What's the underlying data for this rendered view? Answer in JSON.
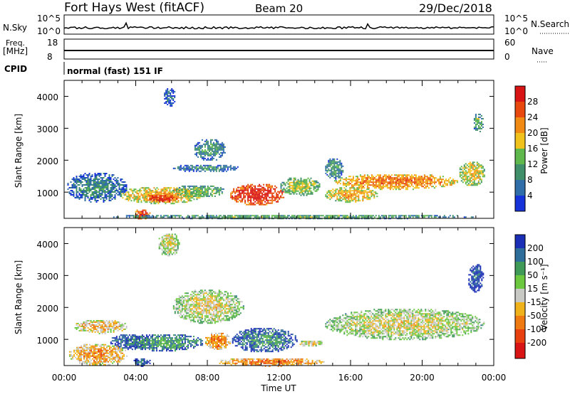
{
  "header": {
    "station": "Fort Hays West (fitACF)",
    "beam": "Beam 20",
    "date": "29/Dec/2018"
  },
  "mini_panels": {
    "nsky_label": "N.Sky",
    "nsky_ticks": [
      "10^5",
      "10^0"
    ],
    "nsearch_label": "N.Search",
    "nsearch_ticks": [
      "10^5",
      "10^0"
    ],
    "freq_label": "Freq.",
    "freq_unit": "[MHz]",
    "freq_ticks": [
      "18",
      "8"
    ],
    "nave_label": "Nave",
    "nave_ticks": [
      "60",
      "0"
    ],
    "cpid_label": "CPID",
    "cpid_text": "normal (fast) 151 IF"
  },
  "x_axis": {
    "label": "Time UT",
    "ticks": [
      "00:00",
      "04:00",
      "08:00",
      "12:00",
      "16:00",
      "20:00",
      "00:00"
    ]
  },
  "chart_data": [
    {
      "type": "heatmap",
      "panel": "power",
      "ylabel": "Slant Range [km]",
      "yticks": [
        "1000",
        "2000",
        "3000",
        "4000"
      ],
      "ylim": [
        180,
        4500
      ],
      "xlim_hours": [
        0,
        24
      ],
      "colorbar_label": "Power [dB]",
      "colorbar_ticks": [
        "4",
        "8",
        "12",
        "16",
        "20",
        "24",
        "28"
      ],
      "colors": [
        "#1533d8",
        "#2f6ea8",
        "#3f8f6a",
        "#5fb84c",
        "#f2c21c",
        "#f08a12",
        "#e8480e",
        "#d81414"
      ],
      "regions": [
        {
          "t": [
            0.1,
            3.5
          ],
          "r": [
            700,
            1650
          ],
          "level": 0.3
        },
        {
          "t": [
            3.0,
            7.8
          ],
          "r": [
            650,
            1200
          ],
          "level": 0.65
        },
        {
          "t": [
            4.5,
            6.3
          ],
          "r": [
            700,
            950
          ],
          "level": 0.95
        },
        {
          "t": [
            6.0,
            9.0
          ],
          "r": [
            850,
            1250
          ],
          "level": 0.45
        },
        {
          "t": [
            9.2,
            12.3
          ],
          "r": [
            600,
            1300
          ],
          "level": 0.95
        },
        {
          "t": [
            12.0,
            14.3
          ],
          "r": [
            900,
            1500
          ],
          "level": 0.5
        },
        {
          "t": [
            6.0,
            9.8
          ],
          "r": [
            1650,
            1900
          ],
          "level": 0.3
        },
        {
          "t": [
            7.2,
            9.0
          ],
          "r": [
            2000,
            2700
          ],
          "level": 0.35
        },
        {
          "t": [
            14.5,
            17.5
          ],
          "r": [
            700,
            1200
          ],
          "level": 0.65
        },
        {
          "t": [
            15.0,
            22.0
          ],
          "r": [
            1100,
            1600
          ],
          "level": 0.75
        },
        {
          "t": [
            22.0,
            23.5
          ],
          "r": [
            1200,
            2000
          ],
          "level": 0.6
        },
        {
          "t": [
            14.5,
            15.6
          ],
          "r": [
            1400,
            2100
          ],
          "level": 0.35
        },
        {
          "t": [
            22.8,
            23.4
          ],
          "r": [
            2900,
            3500
          ],
          "level": 0.4
        },
        {
          "t": [
            3.8,
            4.8
          ],
          "r": [
            170,
            500
          ],
          "level": 0.85
        },
        {
          "t": [
            2.5,
            23.0
          ],
          "r": [
            180,
            330
          ],
          "level": 0.4
        },
        {
          "t": [
            5.5,
            6.2
          ],
          "r": [
            3700,
            4300
          ],
          "level": 0.2
        }
      ]
    },
    {
      "type": "heatmap",
      "panel": "velocity",
      "ylabel": "Slant Range [km]",
      "yticks": [
        "1000",
        "2000",
        "3000",
        "4000"
      ],
      "ylim": [
        180,
        4500
      ],
      "xlim_hours": [
        0,
        24
      ],
      "colorbar_label": "Velocity [m s⁻¹]",
      "colorbar_ticks": [
        "200",
        "100",
        "50",
        "15",
        "-15",
        "-50",
        "-100",
        "-200"
      ],
      "colors": [
        "#1a2fb5",
        "#2e6e9a",
        "#3e9a56",
        "#6cc93f",
        "#c8c8c4",
        "#f0b21a",
        "#f07a12",
        "#e8400e",
        "#d81414"
      ],
      "regions": [
        {
          "t": [
            0.5,
            3.5
          ],
          "r": [
            1200,
            1650
          ],
          "level": 0.65
        },
        {
          "t": [
            2.5,
            4.8
          ],
          "r": [
            700,
            1200
          ],
          "level": 0.2
        },
        {
          "t": [
            3.3,
            7.8
          ],
          "r": [
            650,
            1200
          ],
          "level": 0.3
        },
        {
          "t": [
            7.8,
            9.3
          ],
          "r": [
            700,
            1250
          ],
          "level": 0.75
        },
        {
          "t": [
            9.3,
            13.0
          ],
          "r": [
            600,
            1400
          ],
          "level": 0.25
        },
        {
          "t": [
            13.0,
            14.5
          ],
          "r": [
            800,
            1000
          ],
          "level": 0.6
        },
        {
          "t": [
            6.0,
            10.0
          ],
          "r": [
            1500,
            2600
          ],
          "level": 0.55
        },
        {
          "t": [
            14.5,
            23.5
          ],
          "r": [
            1000,
            2000
          ],
          "level": 0.55
        },
        {
          "t": [
            0.2,
            3.5
          ],
          "r": [
            200,
            900
          ],
          "level": 0.7
        },
        {
          "t": [
            8.5,
            14.5
          ],
          "r": [
            180,
            450
          ],
          "level": 0.75
        },
        {
          "t": [
            3.8,
            4.8
          ],
          "r": [
            180,
            450
          ],
          "level": 0.15
        },
        {
          "t": [
            22.5,
            23.4
          ],
          "r": [
            2500,
            3400
          ],
          "level": 0.15
        },
        {
          "t": [
            5.2,
            6.4
          ],
          "r": [
            3600,
            4400
          ],
          "level": 0.55
        }
      ]
    }
  ]
}
